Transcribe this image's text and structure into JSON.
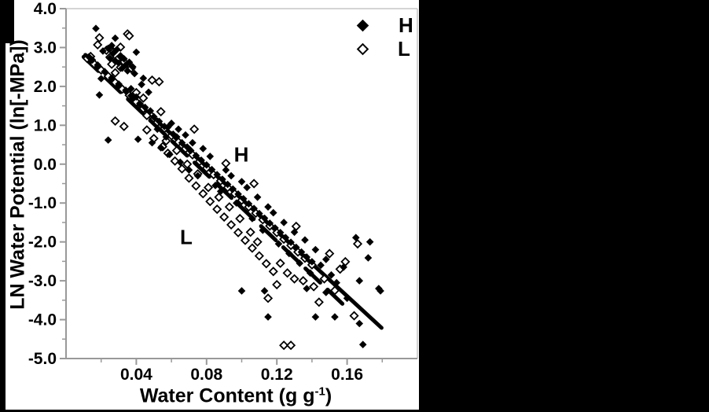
{
  "figure": {
    "background": "#000000",
    "panel_background": "#ffffff",
    "axis_color": "#999999",
    "frame_color": "#c6c6c6",
    "marker_color": "#000000",
    "text_color": "#000000"
  },
  "chart_data": {
    "type": "scatter",
    "title": "",
    "ylabel": "LN Water Potential (ln[-MPa])",
    "xlabel_parts": {
      "prefix": "Water Content (g g",
      "sup": "-1",
      "suffix": ")"
    },
    "xlim": [
      0,
      0.2
    ],
    "ylim": [
      -5,
      4
    ],
    "grid": false,
    "x_major_ticks": [
      0.04,
      0.08,
      0.12,
      0.16
    ],
    "x_tick_labels": [
      "0.04",
      "0.08",
      "0.12",
      "0.16"
    ],
    "x_minor_ticks": [
      0.02,
      0.06,
      0.1,
      0.14,
      0.18
    ],
    "y_major_ticks": [
      4,
      3,
      2,
      1,
      0,
      -1,
      -2,
      -3,
      -4,
      -5
    ],
    "y_tick_labels": [
      "4.0",
      "3.0",
      "2.0",
      "1.0",
      "0.0",
      "-1.0",
      "-2.0",
      "-3.0",
      "-4.0",
      "-5.0"
    ],
    "y_minor_ticks": [
      3.5,
      2.5,
      1.5,
      0.5,
      -0.5,
      -1.5,
      -2.5,
      -3.5,
      -4.5
    ],
    "legend": {
      "position": "top-right",
      "entries": [
        "H",
        "L"
      ]
    },
    "annotations": [
      {
        "text": "H",
        "x": 0.1,
        "y": 0.24
      },
      {
        "text": "L",
        "x": 0.068,
        "y": -1.89
      }
    ],
    "series": [
      {
        "name": "H",
        "marker": "filled-diamond",
        "trend_line": {
          "style": "solid",
          "x1": 0.011,
          "y1": 2.81,
          "x2": 0.1796,
          "y2": -4.21
        },
        "points": [
          [
            0.017,
            3.49
          ],
          [
            0.028,
            3.24
          ],
          [
            0.026,
            3.05
          ],
          [
            0.024,
            2.98
          ],
          [
            0.029,
            2.95
          ],
          [
            0.021,
            2.91
          ],
          [
            0.04,
            2.88
          ],
          [
            0.027,
            2.86
          ],
          [
            0.031,
            2.79
          ],
          [
            0.025,
            2.72
          ],
          [
            0.033,
            2.71
          ],
          [
            0.028,
            2.66
          ],
          [
            0.036,
            2.62
          ],
          [
            0.03,
            2.6
          ],
          [
            0.034,
            2.55
          ],
          [
            0.038,
            2.5
          ],
          [
            0.032,
            2.47
          ],
          [
            0.035,
            2.4
          ],
          [
            0.039,
            2.33
          ],
          [
            0.044,
            2.21
          ],
          [
            0.02,
            2.2
          ],
          [
            0.043,
            2.05
          ],
          [
            0.037,
            1.94
          ],
          [
            0.019,
            1.78
          ],
          [
            0.047,
            1.85
          ],
          [
            0.013,
            2.76
          ],
          [
            0.015,
            2.68
          ],
          [
            0.018,
            2.55
          ],
          [
            0.022,
            2.38
          ],
          [
            0.026,
            2.22
          ],
          [
            0.03,
            2.06
          ],
          [
            0.034,
            1.9
          ],
          [
            0.037,
            1.76
          ],
          [
            0.04,
            1.73
          ],
          [
            0.042,
            1.56
          ],
          [
            0.045,
            1.46
          ],
          [
            0.048,
            1.37
          ],
          [
            0.05,
            1.22
          ],
          [
            0.053,
            1.1
          ],
          [
            0.056,
            0.97
          ],
          [
            0.058,
            0.95
          ],
          [
            0.061,
            0.77
          ],
          [
            0.063,
            0.7
          ],
          [
            0.066,
            0.55
          ],
          [
            0.069,
            0.44
          ],
          [
            0.071,
            0.35
          ],
          [
            0.074,
            0.22
          ],
          [
            0.077,
            0.1
          ],
          [
            0.08,
            -0.02
          ],
          [
            0.083,
            -0.14
          ],
          [
            0.086,
            -0.27
          ],
          [
            0.089,
            -0.39
          ],
          [
            0.092,
            -0.52
          ],
          [
            0.095,
            -0.64
          ],
          [
            0.098,
            -0.77
          ],
          [
            0.101,
            -0.89
          ],
          [
            0.104,
            -1.02
          ],
          [
            0.107,
            -1.14
          ],
          [
            0.11,
            -1.27
          ],
          [
            0.113,
            -1.39
          ],
          [
            0.116,
            -1.52
          ],
          [
            0.119,
            -1.64
          ],
          [
            0.122,
            -1.76
          ],
          [
            0.125,
            -1.89
          ],
          [
            0.128,
            -2.01
          ],
          [
            0.131,
            -2.14
          ],
          [
            0.134,
            -2.26
          ],
          [
            0.137,
            -2.39
          ],
          [
            0.14,
            -2.51
          ],
          [
            0.024,
            0.62
          ],
          [
            0.041,
            0.64
          ],
          [
            0.052,
            0.9
          ],
          [
            0.057,
            0.7
          ],
          [
            0.049,
            0.55
          ],
          [
            0.054,
            0.42
          ],
          [
            0.06,
            1.05
          ],
          [
            0.064,
            0.9
          ],
          [
            0.068,
            0.75
          ],
          [
            0.059,
            0.25
          ],
          [
            0.065,
            0.05
          ],
          [
            0.07,
            -0.15
          ],
          [
            0.075,
            -0.3
          ],
          [
            0.072,
            0.55
          ],
          [
            0.078,
            0.4
          ],
          [
            0.082,
            0.2
          ],
          [
            0.085,
            -0.55
          ],
          [
            0.088,
            -0.7
          ],
          [
            0.091,
            -0.15
          ],
          [
            0.094,
            -0.3
          ],
          [
            0.097,
            -1.0
          ],
          [
            0.1,
            -0.45
          ],
          [
            0.103,
            -0.6
          ],
          [
            0.106,
            -1.4
          ],
          [
            0.109,
            -0.85
          ],
          [
            0.112,
            -1.7
          ],
          [
            0.115,
            -1.1
          ],
          [
            0.118,
            -1.25
          ],
          [
            0.121,
            -2.05
          ],
          [
            0.124,
            -1.5
          ],
          [
            0.127,
            -2.3
          ],
          [
            0.13,
            -1.75
          ],
          [
            0.133,
            -2.55
          ],
          [
            0.136,
            -1.95
          ],
          [
            0.139,
            -2.8
          ],
          [
            0.142,
            -2.2
          ],
          [
            0.145,
            -2.6
          ],
          [
            0.148,
            -2.45
          ],
          [
            0.151,
            -2.85
          ],
          [
            0.154,
            -3.05
          ],
          [
            0.165,
            -1.89
          ],
          [
            0.173,
            -2.0
          ],
          [
            0.172,
            -2.41
          ],
          [
            0.158,
            -2.65
          ],
          [
            0.167,
            -3.0
          ],
          [
            0.178,
            -3.2
          ],
          [
            0.137,
            -3.2
          ],
          [
            0.1,
            -3.26
          ],
          [
            0.113,
            -3.26
          ],
          [
            0.179,
            -3.26
          ],
          [
            0.115,
            -3.93
          ],
          [
            0.142,
            -3.93
          ],
          [
            0.153,
            -3.93
          ],
          [
            0.167,
            -4.1
          ],
          [
            0.169,
            -4.64
          ],
          [
            0.16,
            -3.45
          ],
          [
            0.148,
            -3.3
          ]
        ]
      },
      {
        "name": "L",
        "marker": "open-diamond",
        "trend_line": {
          "style": "dashed",
          "x1": 0.01,
          "y1": 2.76,
          "x2": 0.158,
          "y2": -3.62
        },
        "points": [
          [
            0.019,
            3.25
          ],
          [
            0.035,
            3.35
          ],
          [
            0.036,
            3.3
          ],
          [
            0.018,
            3.07
          ],
          [
            0.031,
            3.01
          ],
          [
            0.023,
            2.93
          ],
          [
            0.027,
            2.89
          ],
          [
            0.014,
            2.77
          ],
          [
            0.025,
            2.75
          ],
          [
            0.029,
            2.68
          ],
          [
            0.033,
            2.63
          ],
          [
            0.026,
            2.57
          ],
          [
            0.036,
            2.56
          ],
          [
            0.031,
            2.49
          ],
          [
            0.037,
            2.46
          ],
          [
            0.028,
            2.35
          ],
          [
            0.049,
            2.16
          ],
          [
            0.053,
            2.12
          ],
          [
            0.04,
            1.84
          ],
          [
            0.044,
            1.7
          ],
          [
            0.028,
            1.11
          ],
          [
            0.033,
            0.97
          ],
          [
            0.012,
            2.72
          ],
          [
            0.016,
            2.58
          ],
          [
            0.02,
            2.42
          ],
          [
            0.024,
            2.26
          ],
          [
            0.028,
            2.1
          ],
          [
            0.032,
            1.93
          ],
          [
            0.036,
            1.77
          ],
          [
            0.04,
            1.6
          ],
          [
            0.044,
            1.43
          ],
          [
            0.048,
            1.27
          ],
          [
            0.052,
            1.08
          ],
          [
            0.056,
            0.92
          ],
          [
            0.06,
            0.73
          ],
          [
            0.064,
            0.57
          ],
          [
            0.068,
            0.4
          ],
          [
            0.072,
            0.24
          ],
          [
            0.076,
            0.07
          ],
          [
            0.08,
            -0.1
          ],
          [
            0.084,
            -0.27
          ],
          [
            0.088,
            -0.43
          ],
          [
            0.092,
            -0.6
          ],
          [
            0.096,
            -0.76
          ],
          [
            0.1,
            -0.93
          ],
          [
            0.104,
            -1.1
          ],
          [
            0.108,
            -1.26
          ],
          [
            0.112,
            -1.43
          ],
          [
            0.116,
            -1.59
          ],
          [
            0.12,
            -1.76
          ],
          [
            0.124,
            -1.93
          ],
          [
            0.128,
            -2.09
          ],
          [
            0.132,
            -2.26
          ],
          [
            0.136,
            -2.42
          ],
          [
            0.14,
            -2.59
          ],
          [
            0.046,
            0.88
          ],
          [
            0.05,
            0.66
          ],
          [
            0.055,
            0.45
          ],
          [
            0.058,
            0.28
          ],
          [
            0.062,
            0.08
          ],
          [
            0.066,
            -0.12
          ],
          [
            0.07,
            -0.36
          ],
          [
            0.074,
            -0.56
          ],
          [
            0.078,
            -0.76
          ],
          [
            0.082,
            -0.96
          ],
          [
            0.086,
            -1.16
          ],
          [
            0.09,
            -1.36
          ],
          [
            0.094,
            -1.56
          ],
          [
            0.098,
            -1.76
          ],
          [
            0.102,
            -1.96
          ],
          [
            0.106,
            -2.16
          ],
          [
            0.11,
            -2.36
          ],
          [
            0.114,
            -2.56
          ],
          [
            0.118,
            -2.76
          ],
          [
            0.122,
            -2.55
          ],
          [
            0.126,
            -2.8
          ],
          [
            0.13,
            -2.95
          ],
          [
            0.135,
            -3.0
          ],
          [
            0.109,
            -2.0
          ],
          [
            0.105,
            -1.75
          ],
          [
            0.099,
            -1.4
          ],
          [
            0.093,
            -1.1
          ],
          [
            0.087,
            -0.85
          ],
          [
            0.081,
            -0.6
          ],
          [
            0.075,
            -0.25
          ],
          [
            0.069,
            0.0
          ],
          [
            0.063,
            0.35
          ],
          [
            0.057,
            0.6
          ],
          [
            0.046,
            1.25
          ],
          [
            0.054,
            1.35
          ],
          [
            0.073,
            0.9
          ],
          [
            0.091,
            0.02
          ],
          [
            0.107,
            -0.5
          ],
          [
            0.131,
            -1.6
          ],
          [
            0.124,
            -4.66
          ],
          [
            0.128,
            -4.66
          ],
          [
            0.164,
            -3.9
          ],
          [
            0.159,
            -2.51
          ],
          [
            0.166,
            -2.05
          ],
          [
            0.141,
            -3.15
          ],
          [
            0.147,
            -2.95
          ],
          [
            0.153,
            -3.25
          ],
          [
            0.144,
            -3.55
          ],
          [
            0.15,
            -2.3
          ],
          [
            0.156,
            -2.7
          ],
          [
            0.12,
            -3.1
          ],
          [
            0.115,
            -3.45
          ]
        ]
      }
    ]
  }
}
